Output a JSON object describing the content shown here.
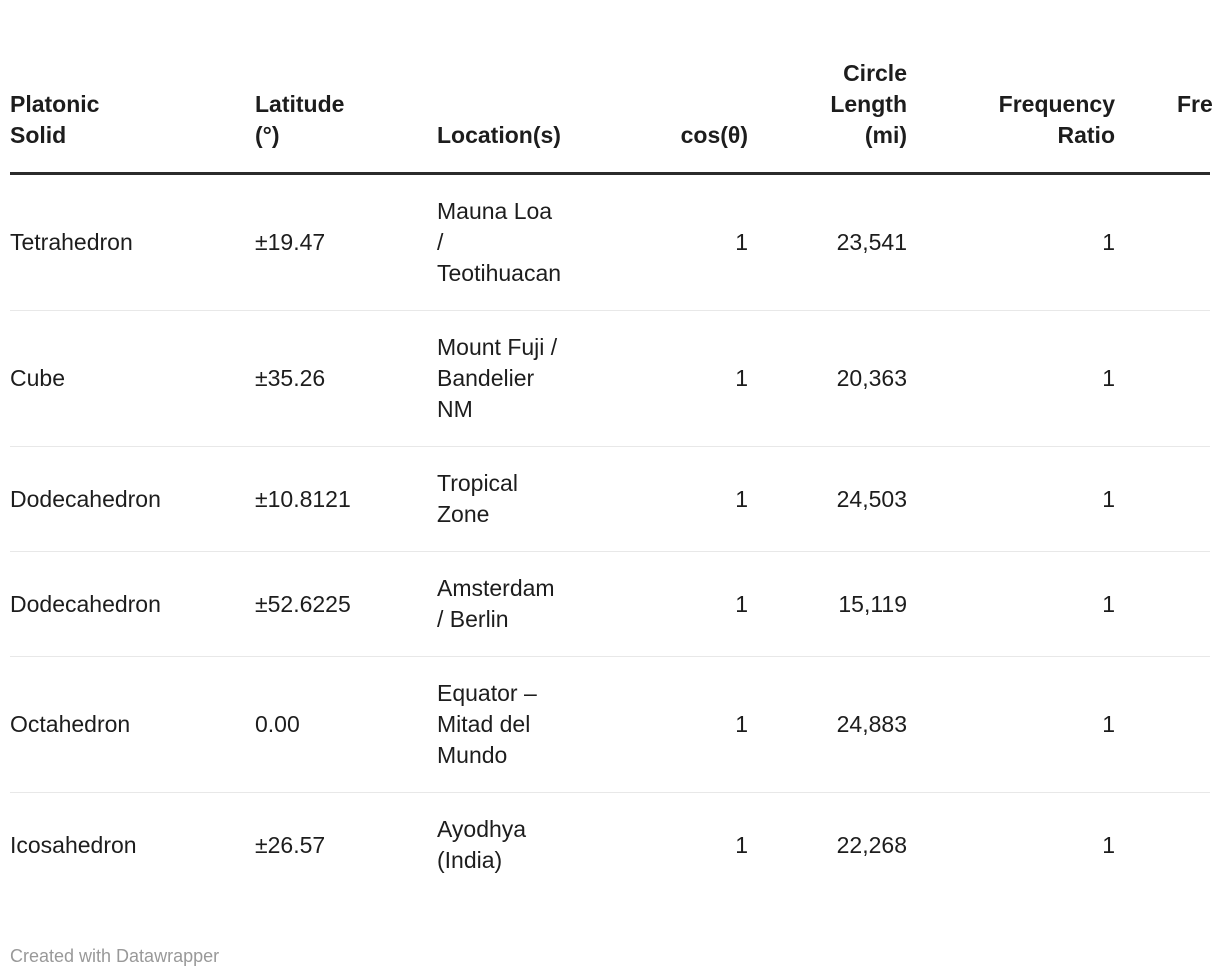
{
  "table": {
    "columns": {
      "solid": {
        "label": "Platonic\nSolid",
        "align": "left"
      },
      "latitude": {
        "label": "Latitude\n(°)",
        "align": "left"
      },
      "location": {
        "label": "Location(s)",
        "align": "left"
      },
      "cos": {
        "label": "cos(θ)",
        "align": "right"
      },
      "circle": {
        "label": "Circle\nLength\n(mi)",
        "align": "right"
      },
      "freq": {
        "label": "Frequency\nRatio",
        "align": "right"
      },
      "clipped": {
        "label": "Fre",
        "align": "left",
        "note": "column cut off at right edge of viewport"
      }
    },
    "rows": [
      {
        "solid": "Tetrahedron",
        "latitude": "±19.47",
        "location": "Mauna Loa\n/\nTeotihuacan",
        "cos": "1",
        "circle": "23,541",
        "freq": "1"
      },
      {
        "solid": "Cube",
        "latitude": "±35.26",
        "location": "Mount Fuji /\nBandelier\nNM",
        "cos": "1",
        "circle": "20,363",
        "freq": "1"
      },
      {
        "solid": "Dodecahedron",
        "latitude": "±10.8121",
        "location": "Tropical\nZone",
        "cos": "1",
        "circle": "24,503",
        "freq": "1"
      },
      {
        "solid": "Dodecahedron",
        "latitude": "±52.6225",
        "location": "Amsterdam\n/ Berlin",
        "cos": "1",
        "circle": "15,119",
        "freq": "1"
      },
      {
        "solid": "Octahedron",
        "latitude": "0.00",
        "location": "Equator –\nMitad del\nMundo",
        "cos": "1",
        "circle": "24,883",
        "freq": "1"
      },
      {
        "solid": "Icosahedron",
        "latitude": "±26.57",
        "location": "Ayodhya\n(India)",
        "cos": "1",
        "circle": "22,268",
        "freq": "1"
      }
    ]
  },
  "footer": {
    "credit": "Created with Datawrapper"
  },
  "colors": {
    "text": "#1d1d1d",
    "header_rule": "#2b2b2b",
    "row_divider": "#e8e8e8",
    "credit_text": "#999999",
    "background": "#ffffff"
  }
}
